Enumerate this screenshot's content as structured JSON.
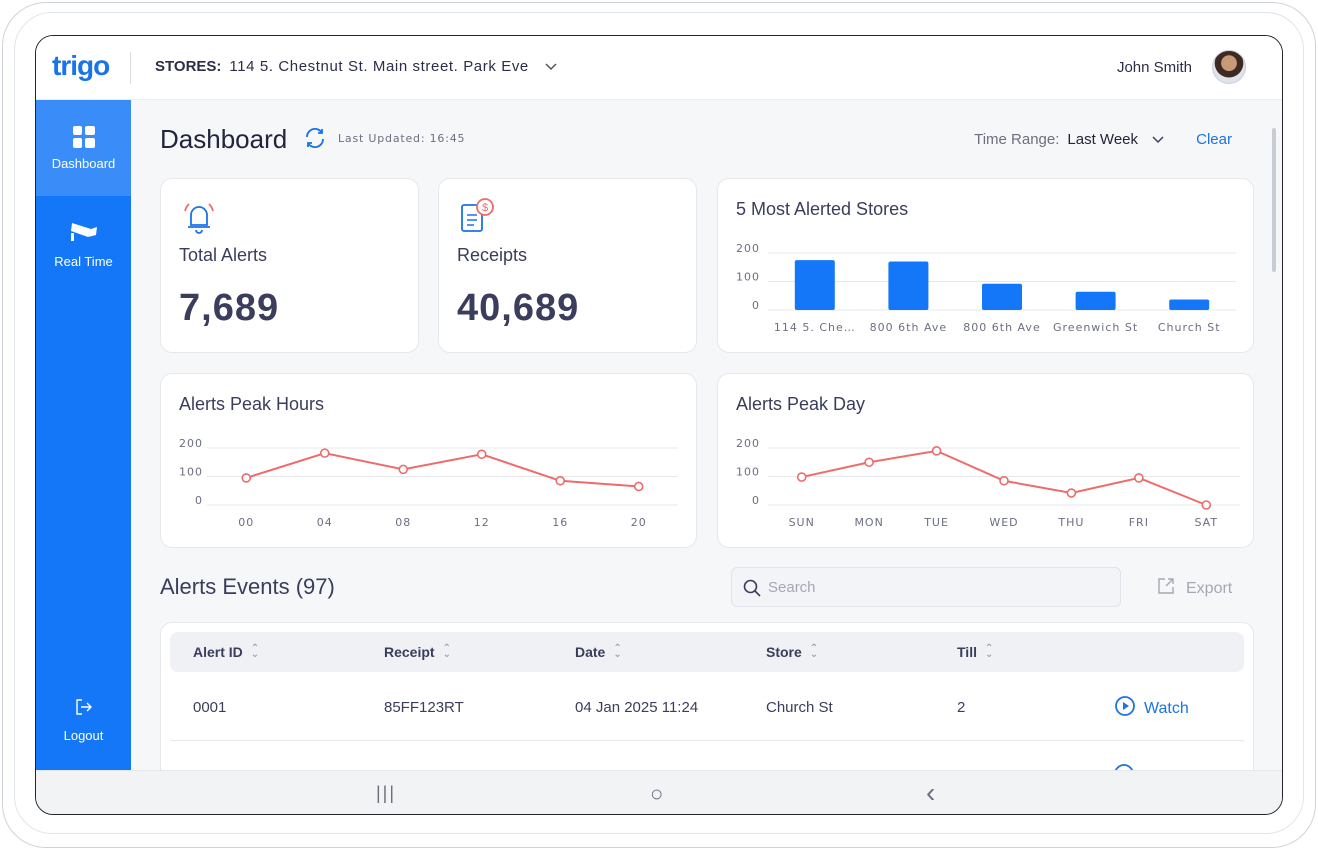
{
  "header": {
    "logo": "trigo",
    "stores_label": "STORES:",
    "stores_value": "114 5. Chestnut St. Main street. Park Eve",
    "user_name": "John Smith"
  },
  "sidebar": {
    "items": [
      {
        "label": "Dashboard",
        "icon": "dashboard-grid-icon",
        "active": true
      },
      {
        "label": "Real Time",
        "icon": "camera-icon",
        "active": false
      },
      {
        "label": "Logout",
        "icon": "logout-icon",
        "active": false
      }
    ]
  },
  "dashboard": {
    "title": "Dashboard",
    "last_updated": "Last Updated: 16:45",
    "time_range_label": "Time Range:",
    "time_range_value": "Last Week",
    "clear_label": "Clear"
  },
  "stats": {
    "total_alerts": {
      "label": "Total Alerts",
      "value": "7,689",
      "icon": "bell-icon"
    },
    "receipts": {
      "label": "Receipts",
      "value": "40,689",
      "icon": "receipt-icon"
    }
  },
  "colors": {
    "accent": "#1477f8",
    "line": "#ef6b6b",
    "bar": "#1477f8"
  },
  "chart_data": [
    {
      "type": "bar",
      "title": "5 Most Alerted Stores",
      "categories": [
        "114 5. Che…",
        "800 6th Ave",
        "800 6th Ave",
        "Greenwich St",
        "Church St"
      ],
      "values": [
        175,
        170,
        92,
        64,
        37
      ],
      "yticks": [
        0,
        100,
        200
      ],
      "ylim": [
        0,
        200
      ]
    },
    {
      "type": "line",
      "title": "Alerts Peak Hours",
      "categories": [
        "00",
        "04",
        "08",
        "12",
        "16",
        "20"
      ],
      "values": [
        95,
        182,
        125,
        178,
        85,
        65
      ],
      "yticks": [
        0,
        100,
        200
      ],
      "ylim": [
        0,
        200
      ]
    },
    {
      "type": "line",
      "title": "Alerts Peak Day",
      "categories": [
        "SUN",
        "MON",
        "TUE",
        "WED",
        "THU",
        "FRI",
        "SAT"
      ],
      "values": [
        98,
        150,
        190,
        85,
        42,
        95,
        0
      ],
      "yticks": [
        0,
        100,
        200
      ],
      "ylim": [
        0,
        200
      ]
    }
  ],
  "events": {
    "title": "Alerts Events (97)",
    "search_placeholder": "Search",
    "export_label": "Export",
    "columns": [
      "Alert ID",
      "Receipt",
      "Date",
      "Store",
      "Till"
    ],
    "rows": [
      {
        "alert_id": "0001",
        "receipt": "85FF123RT",
        "date": "04 Jan 2025 11:24",
        "store": "Church St",
        "till": "2",
        "action": "Watch"
      }
    ]
  },
  "navbar": {
    "recents": "|||",
    "home": "○",
    "back": "‹"
  }
}
